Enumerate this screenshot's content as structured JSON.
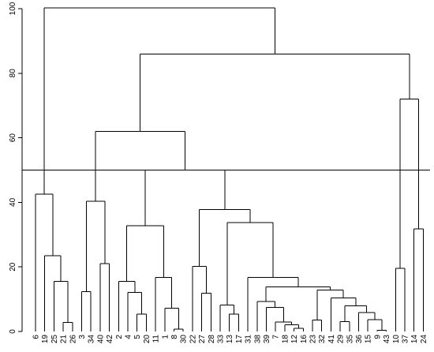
{
  "chart_data": {
    "type": "dendrogram",
    "title": "",
    "xlabel": "",
    "ylabel": "",
    "ylim": [
      0,
      100
    ],
    "y_ticks": [
      0,
      20,
      40,
      60,
      80,
      100
    ],
    "cut_height": 50,
    "leaf_order": [
      "6",
      "19",
      "25",
      "21",
      "26",
      "3",
      "34",
      "40",
      "42",
      "2",
      "4",
      "5",
      "20",
      "11",
      "1",
      "8",
      "30",
      "22",
      "27",
      "28",
      "33",
      "13",
      "17",
      "31",
      "38",
      "39",
      "7",
      "18",
      "12",
      "16",
      "23",
      "32",
      "41",
      "29",
      "35",
      "36",
      "15",
      "9",
      "43",
      "10",
      "37",
      "14",
      "24"
    ],
    "tree": {
      "h": 100.2,
      "c": [
        {
          "h": 42.5,
          "c": [
            {
              "l": "6"
            },
            {
              "h": 23.5,
              "c": [
                {
                  "l": "19"
                },
                {
                  "h": 15.5,
                  "c": [
                    {
                      "l": "25"
                    },
                    {
                      "h": 2.8,
                      "c": [
                        {
                          "l": "21"
                        },
                        {
                          "l": "26"
                        }
                      ]
                    }
                  ]
                }
              ]
            }
          ]
        },
        {
          "h": 86,
          "c": [
            {
              "h": 62,
              "c": [
                {
                  "h": 40.3,
                  "c": [
                    {
                      "h": 12.3,
                      "c": [
                        {
                          "l": "3"
                        },
                        {
                          "l": "34"
                        }
                      ]
                    },
                    {
                      "h": 21,
                      "c": [
                        {
                          "l": "40"
                        },
                        {
                          "l": "42"
                        }
                      ]
                    }
                  ]
                },
                {
                  "h": 50,
                  "c": [
                    {
                      "h": 32.8,
                      "c": [
                        {
                          "h": 15.5,
                          "c": [
                            {
                              "l": "2"
                            },
                            {
                              "h": 12.1,
                              "c": [
                                {
                                  "l": "4"
                                },
                                {
                                  "h": 5.4,
                                  "c": [
                                    {
                                      "l": "5"
                                    },
                                    {
                                      "l": "20"
                                    }
                                  ]
                                }
                              ]
                            }
                          ]
                        },
                        {
                          "h": 16.8,
                          "c": [
                            {
                              "l": "11"
                            },
                            {
                              "h": 7.2,
                              "c": [
                                {
                                  "l": "1"
                                },
                                {
                                  "h": 0.7,
                                  "c": [
                                    {
                                      "l": "8"
                                    },
                                    {
                                      "l": "30"
                                    }
                                  ]
                                }
                              ]
                            }
                          ]
                        }
                      ]
                    },
                    {
                      "h": 37.8,
                      "c": [
                        {
                          "h": 20.2,
                          "c": [
                            {
                              "l": "22"
                            },
                            {
                              "h": 11.8,
                              "c": [
                                {
                                  "l": "27"
                                },
                                {
                                  "l": "28"
                                }
                              ]
                            }
                          ]
                        },
                        {
                          "h": 33.8,
                          "c": [
                            {
                              "h": 8.2,
                              "c": [
                                {
                                  "l": "33"
                                },
                                {
                                  "h": 5.4,
                                  "c": [
                                    {
                                      "l": "13"
                                    },
                                    {
                                      "l": "17"
                                    }
                                  ]
                                }
                              ]
                            },
                            {
                              "h": 16.8,
                              "c": [
                                {
                                  "l": "31"
                                },
                                {
                                  "h": 13.8,
                                  "c": [
                                    {
                                      "h": 9.3,
                                      "c": [
                                        {
                                          "l": "38"
                                        },
                                        {
                                          "h": 7.4,
                                          "c": [
                                            {
                                              "l": "39"
                                            },
                                            {
                                              "h": 2.9,
                                              "c": [
                                                {
                                                  "l": "7"
                                                },
                                                {
                                                  "h": 2.1,
                                                  "c": [
                                                    {
                                                      "l": "18"
                                                    },
                                                    {
                                                      "h": 1.0,
                                                      "c": [
                                                        {
                                                          "l": "12"
                                                        },
                                                        {
                                                          "l": "16"
                                                        }
                                                      ]
                                                    }
                                                  ]
                                                }
                                              ]
                                            }
                                          ]
                                        }
                                      ]
                                    },
                                    {
                                      "h": 12.8,
                                      "c": [
                                        {
                                          "h": 3.5,
                                          "c": [
                                            {
                                              "l": "23"
                                            },
                                            {
                                              "l": "32"
                                            }
                                          ]
                                        },
                                        {
                                          "h": 10.4,
                                          "c": [
                                            {
                                              "l": "41"
                                            },
                                            {
                                              "h": 8.0,
                                              "c": [
                                                {
                                                  "h": 3.0,
                                                  "c": [
                                                    {
                                                      "l": "29"
                                                    },
                                                    {
                                                      "l": "35"
                                                    }
                                                  ]
                                                },
                                                {
                                                  "h": 5.9,
                                                  "c": [
                                                    {
                                                      "l": "36"
                                                    },
                                                    {
                                                      "h": 3.7,
                                                      "c": [
                                                        {
                                                          "l": "15"
                                                        },
                                                        {
                                                          "h": 0.4,
                                                          "c": [
                                                            {
                                                              "l": "9"
                                                            },
                                                            {
                                                              "l": "43"
                                                            }
                                                          ]
                                                        }
                                                      ]
                                                    }
                                                  ]
                                                }
                                              ]
                                            }
                                          ]
                                        }
                                      ]
                                    }
                                  ]
                                }
                              ]
                            }
                          ]
                        }
                      ]
                    }
                  ]
                }
              ]
            },
            {
              "h": 72,
              "c": [
                {
                  "h": 19.6,
                  "c": [
                    {
                      "l": "10"
                    },
                    {
                      "l": "37"
                    }
                  ]
                },
                {
                  "h": 31.8,
                  "c": [
                    {
                      "l": "14"
                    },
                    {
                      "l": "24"
                    }
                  ]
                }
              ]
            }
          ]
        }
      ]
    }
  }
}
